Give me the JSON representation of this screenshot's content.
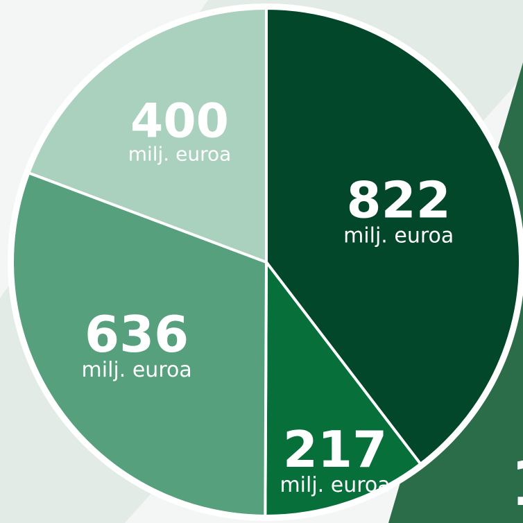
{
  "chart_data": {
    "type": "pie",
    "slices": [
      {
        "value": 822,
        "label": "822",
        "unit": "milj. euroa",
        "color": "#03472a"
      },
      {
        "value": 217,
        "label": "217",
        "unit": "milj. euroa",
        "color": "#07703a"
      },
      {
        "value": 636,
        "label": "636",
        "unit": "milj. euroa",
        "color": "#56a07d"
      },
      {
        "value": 400,
        "label": "400",
        "unit": "milj. euroa",
        "color": "#a9d1bd"
      }
    ]
  },
  "colors": {
    "background": "#f4f6f5",
    "background_band": "#e3ebe7",
    "right_panel": "#2b6d48",
    "slice_border": "#ffffff"
  },
  "edge_glyph": "1"
}
